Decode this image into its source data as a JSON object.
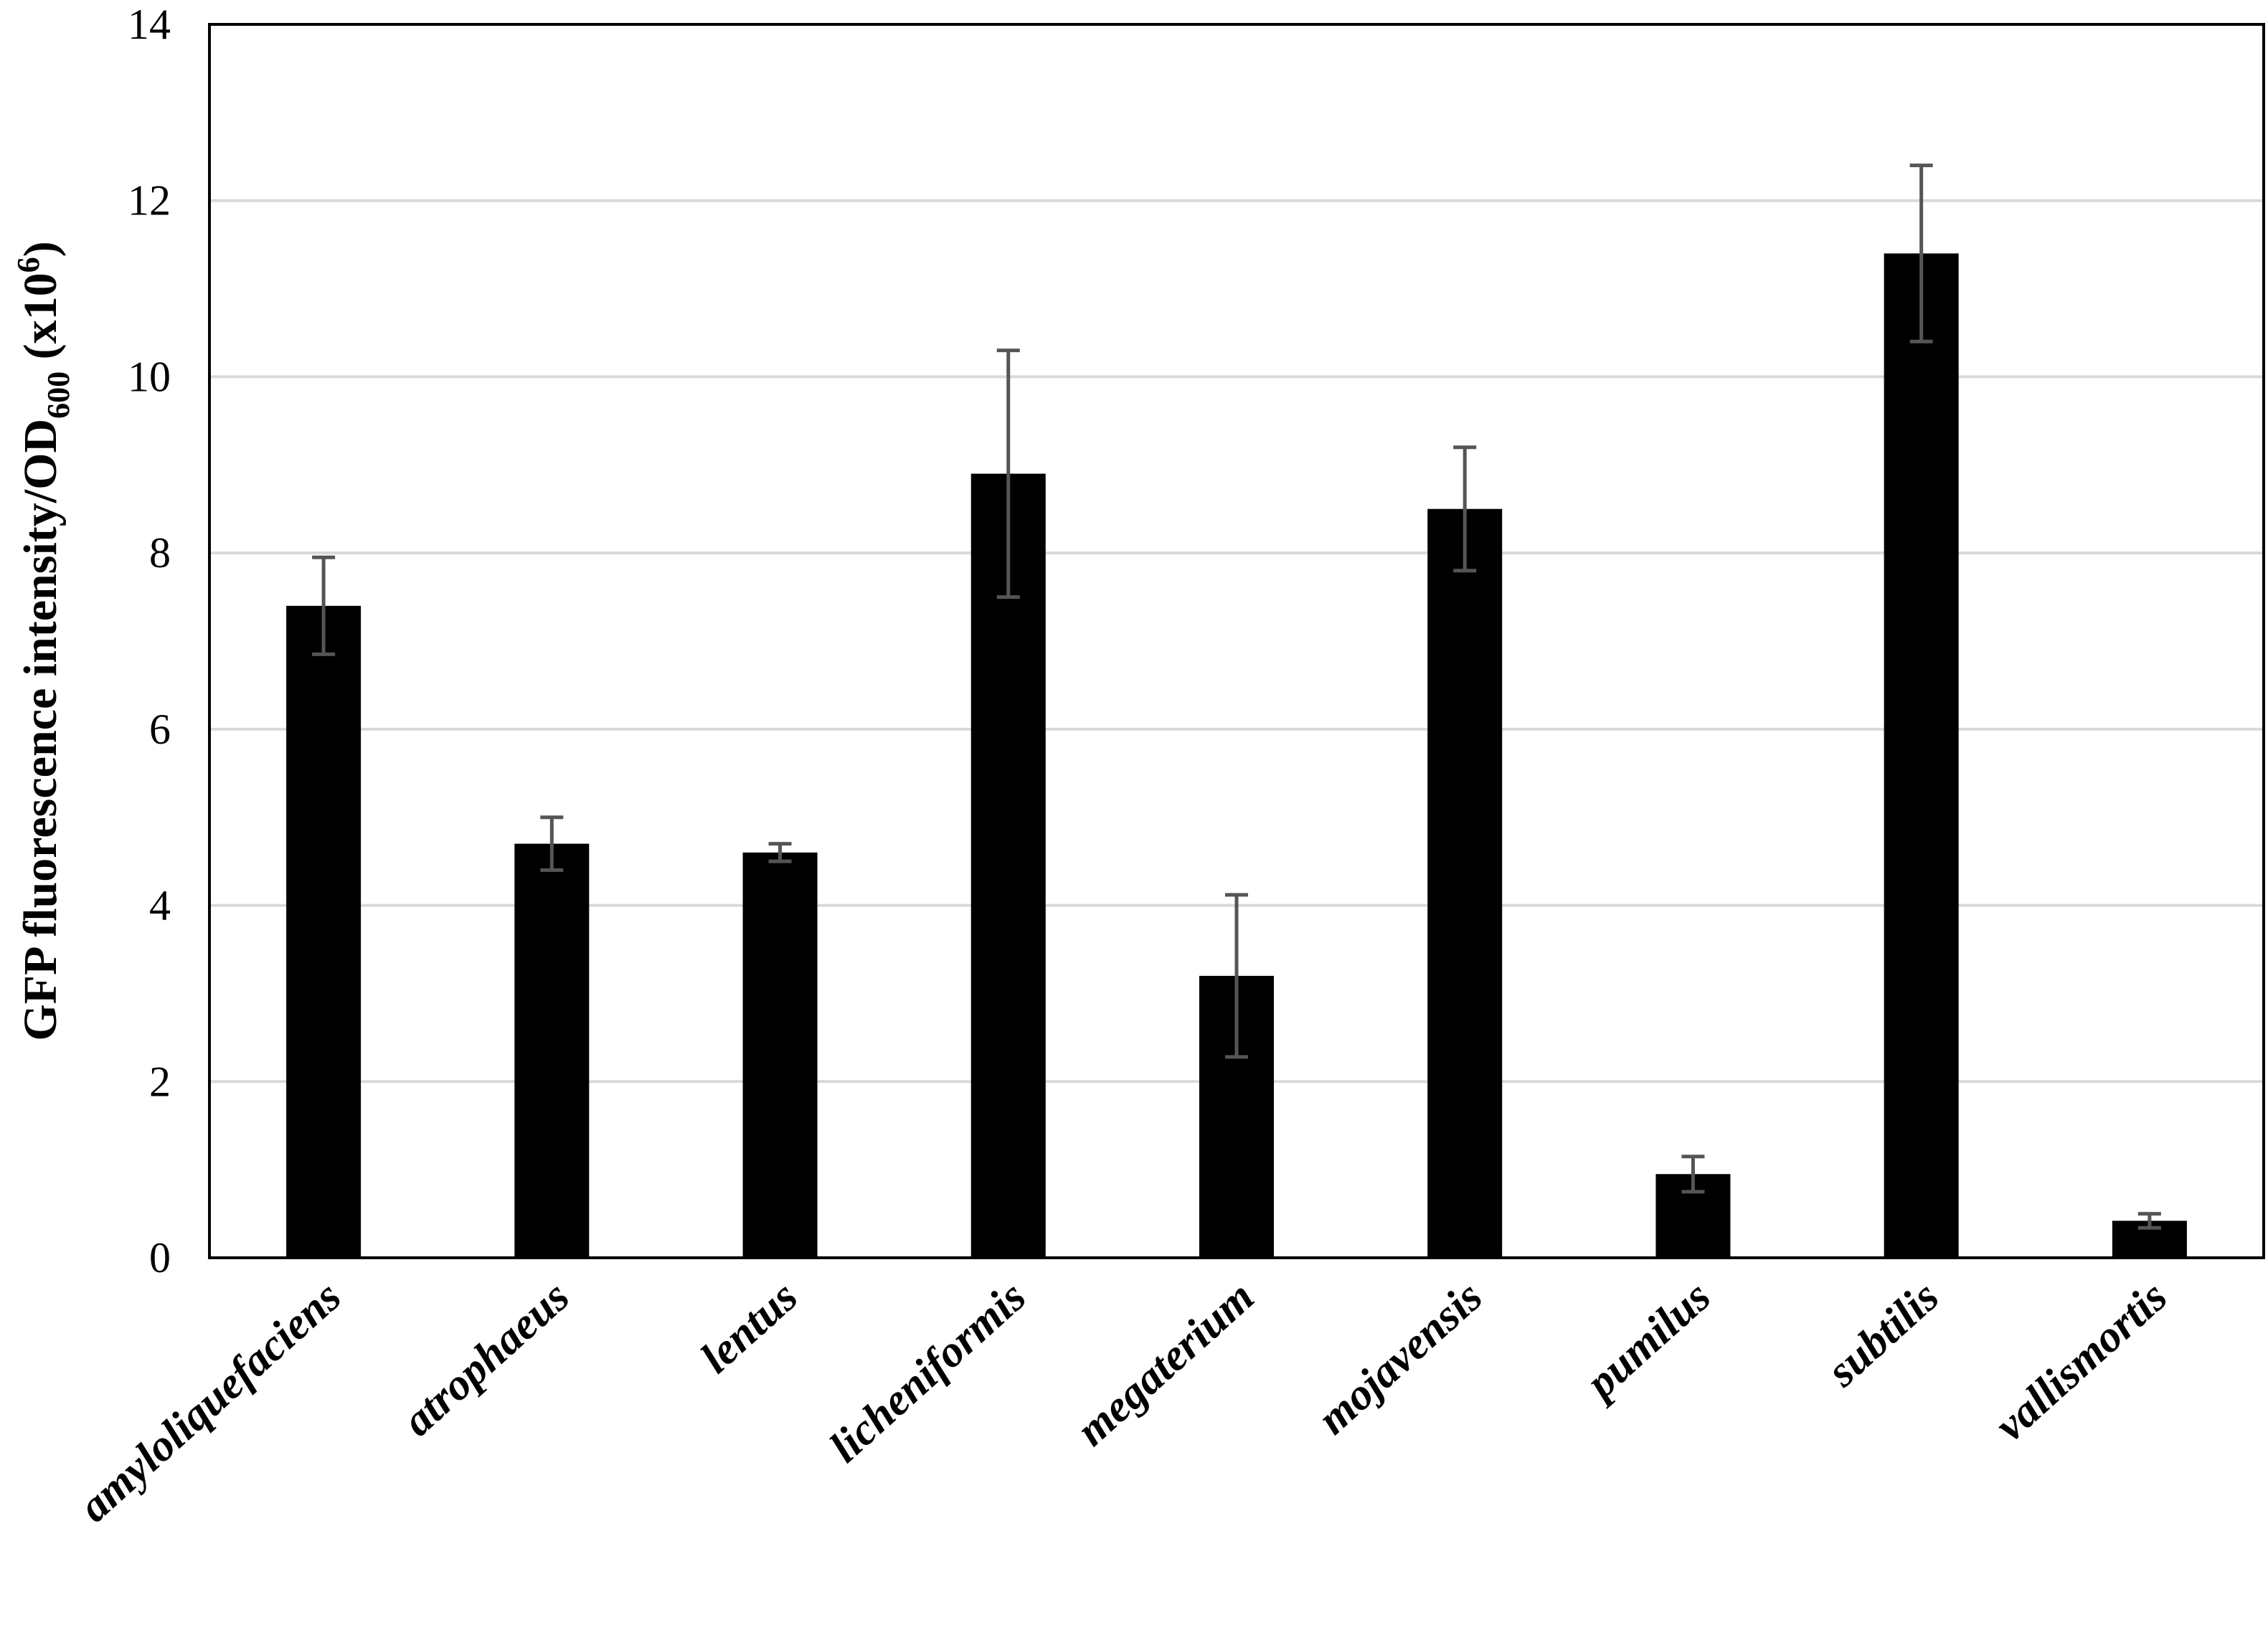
{
  "chart_data": {
    "type": "bar",
    "title": "",
    "xlabel": "",
    "ylabel": {
      "main": "GFP fluorescence intensity/OD",
      "subscript": "600",
      "suffix_open": " (x10",
      "superscript": "6",
      "suffix_close": ")"
    },
    "ylim": [
      0,
      14
    ],
    "yticks": [
      "0",
      "2",
      "4",
      "6",
      "8",
      "10",
      "12",
      "14"
    ],
    "grid": "horizontal",
    "categories": [
      "amyloliquefaciens",
      "atrophaeus",
      "lentus",
      "licheniformis",
      "megaterium",
      "mojavensis",
      "pumilus",
      "subtilis",
      "vallismortis"
    ],
    "values": [
      7.4,
      4.7,
      4.6,
      8.9,
      3.2,
      8.5,
      0.95,
      11.4,
      0.42
    ],
    "error_bars": [
      0.55,
      0.3,
      0.1,
      1.4,
      0.92,
      0.7,
      0.2,
      1.0,
      0.08
    ],
    "colors": {
      "bar": "#000000",
      "error_bar": "#555555",
      "grid": "#d9d9d9",
      "axis": "#000000"
    }
  }
}
